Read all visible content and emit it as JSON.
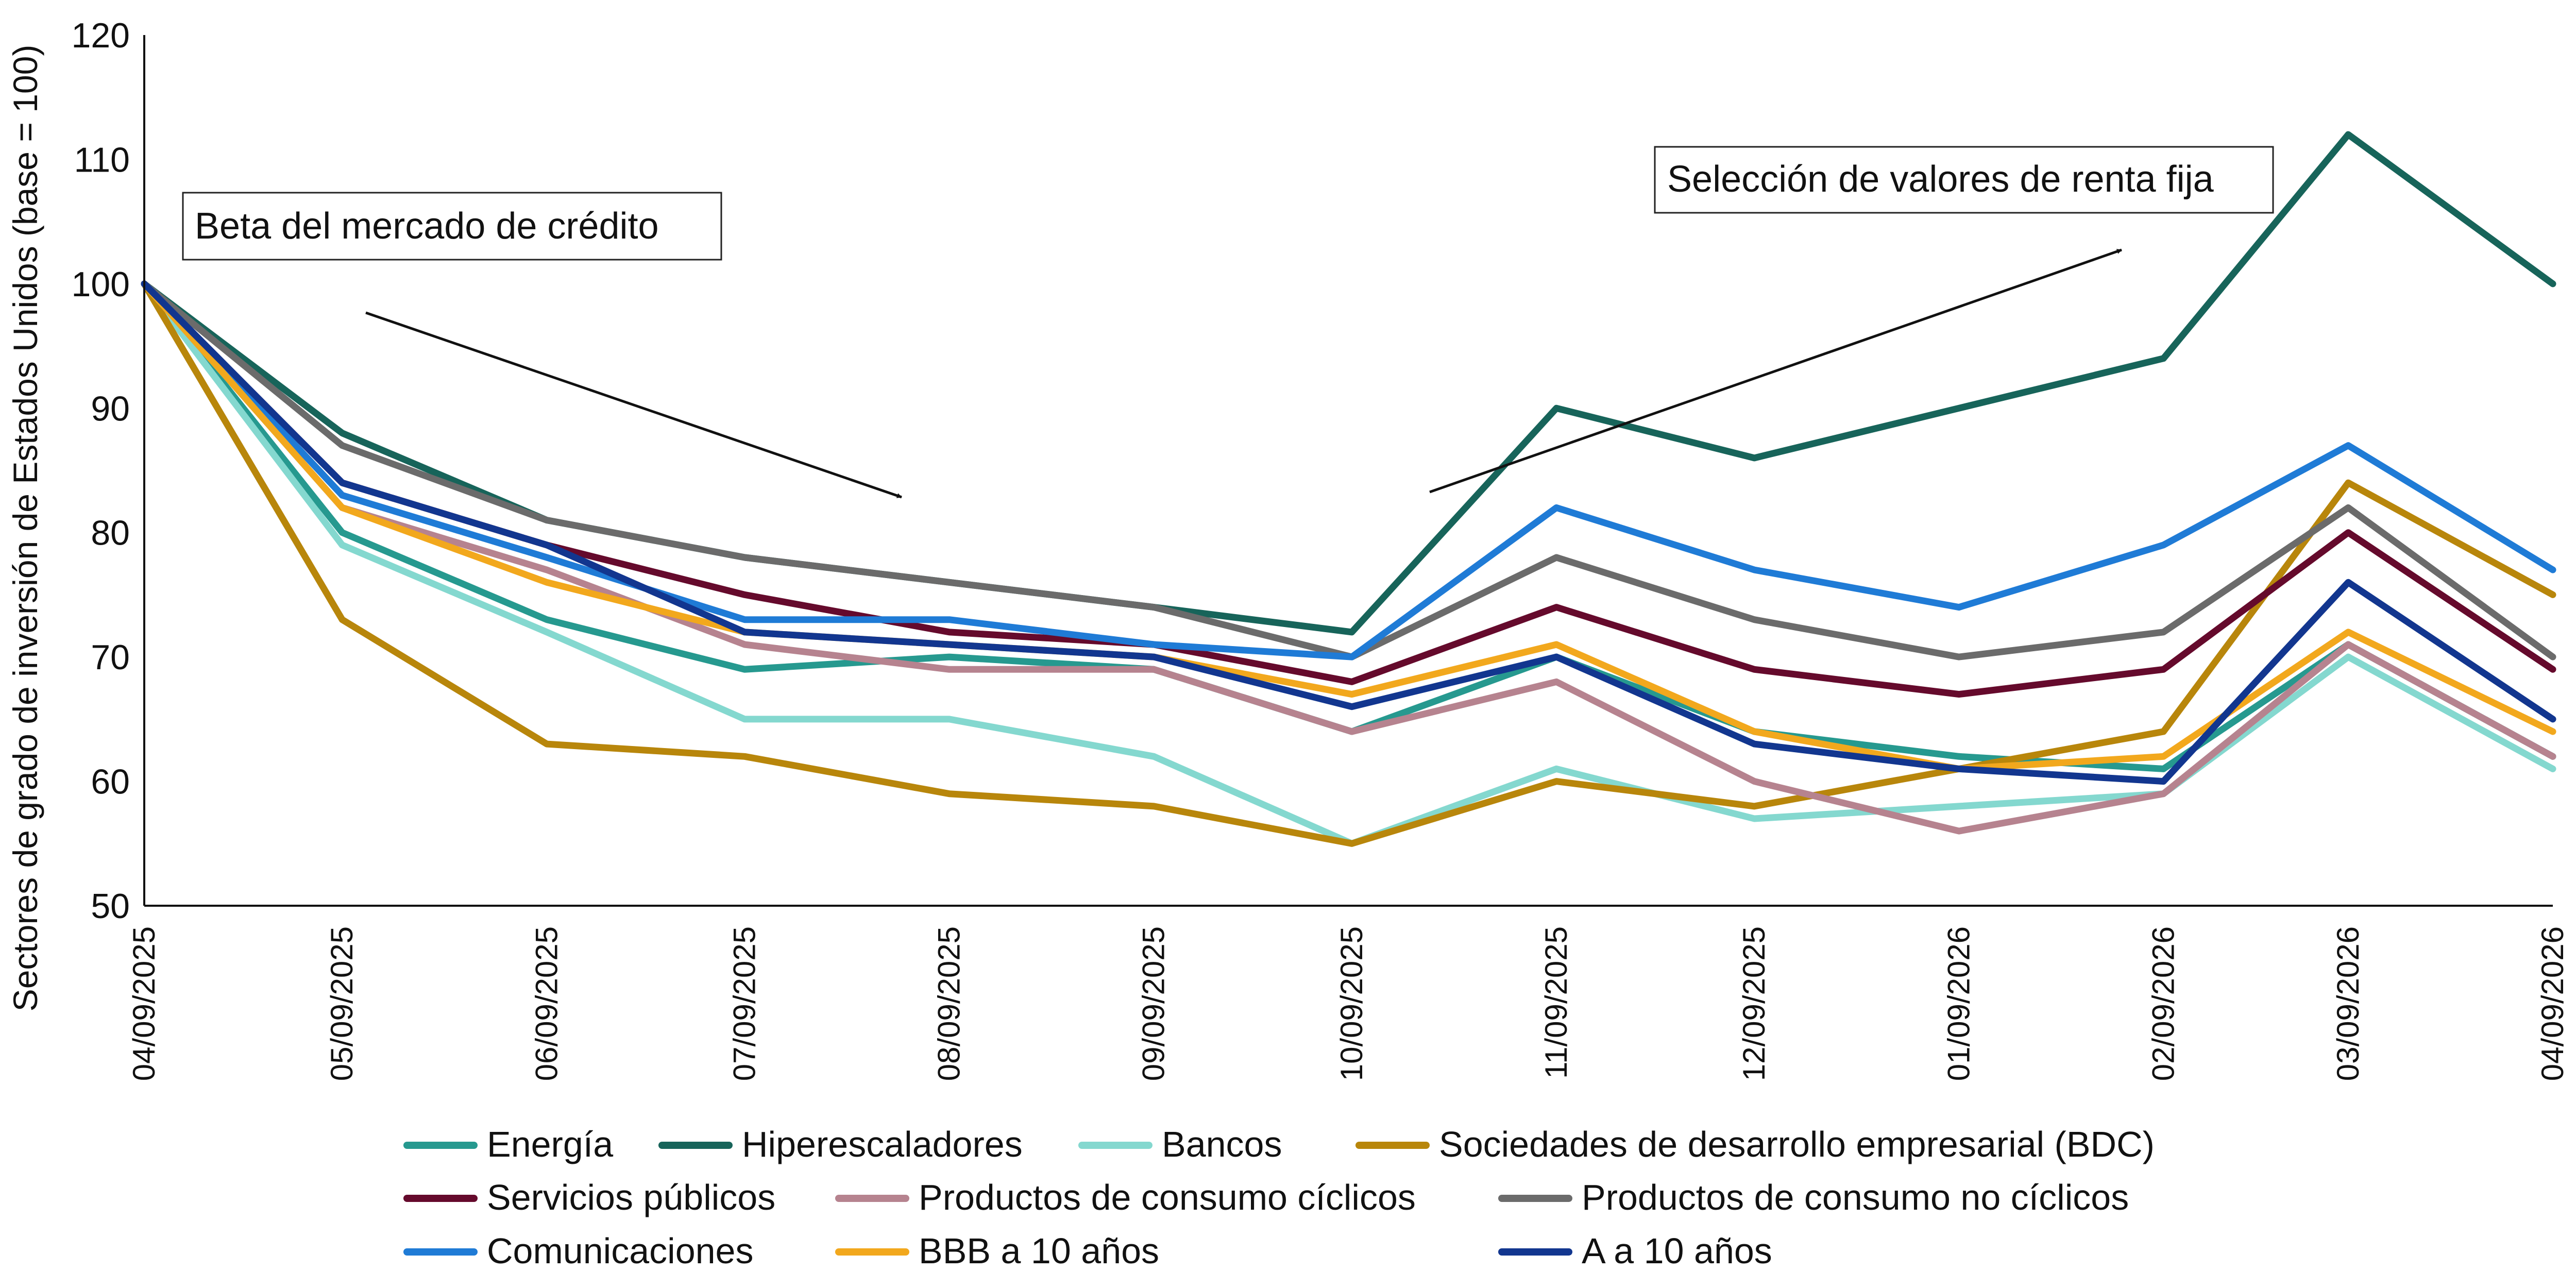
{
  "chart_data": {
    "type": "line",
    "ylabel": "Sectores de grado de inversión de Estados Unidos (base = 100)",
    "xlabel": "",
    "ylim": [
      50,
      120
    ],
    "yticks": [
      50,
      60,
      70,
      80,
      90,
      100,
      110,
      120
    ],
    "xlim": [
      "04/09/2025",
      "04/09/2026"
    ],
    "x_ticks": [
      "04/09/2025",
      "05/09/2025",
      "06/09/2025",
      "07/09/2025",
      "08/09/2025",
      "09/09/2025",
      "10/09/2025",
      "11/09/2025",
      "12/09/2025",
      "01/09/2026",
      "02/09/2026",
      "03/09/2026",
      "04/09/2026"
    ],
    "grid": false,
    "legend_position": "bottom",
    "annotations": [
      {
        "text": "Beta del mercado de crédito"
      },
      {
        "text": "Selección de valores de renta fija"
      }
    ],
    "series": [
      {
        "name": "Energía",
        "color": "#26998f",
        "x": [
          "04/09/2025",
          "05/09/2025",
          "06/09/2025",
          "07/09/2025",
          "08/09/2025",
          "09/09/2025",
          "10/09/2025",
          "11/09/2025",
          "12/09/2025",
          "01/09/2026",
          "02/09/2026",
          "03/09/2026",
          "04/09/2026"
        ],
        "values": [
          100,
          80,
          73,
          69,
          70,
          69,
          64,
          70,
          64,
          62,
          61,
          71,
          62
        ]
      },
      {
        "name": "Hiperescaladores",
        "color": "#17645a",
        "x": [
          "04/09/2025",
          "05/09/2025",
          "06/09/2025",
          "07/09/2025",
          "08/09/2025",
          "09/09/2025",
          "10/09/2025",
          "11/09/2025",
          "12/09/2025",
          "01/09/2026",
          "02/09/2026",
          "03/09/2026",
          "04/09/2026"
        ],
        "values": [
          100,
          88,
          81,
          78,
          76,
          74,
          72,
          90,
          86,
          90,
          94,
          112,
          100
        ]
      },
      {
        "name": "Bancos",
        "color": "#84d8cf",
        "x": [
          "04/09/2025",
          "05/09/2025",
          "06/09/2025",
          "07/09/2025",
          "08/09/2025",
          "09/09/2025",
          "10/09/2025",
          "11/09/2025",
          "12/09/2025",
          "01/09/2026",
          "02/09/2026",
          "03/09/2026",
          "04/09/2026"
        ],
        "values": [
          100,
          79,
          72,
          65,
          65,
          62,
          55,
          61,
          57,
          58,
          59,
          70,
          61
        ]
      },
      {
        "name": "Sociedades de desarrollo empresarial (BDC)",
        "color": "#b8860b",
        "x": [
          "04/09/2025",
          "05/09/2025",
          "06/09/2025",
          "07/09/2025",
          "08/09/2025",
          "09/09/2025",
          "10/09/2025",
          "11/09/2025",
          "12/09/2025",
          "01/09/2026",
          "02/09/2026",
          "03/09/2026",
          "04/09/2026"
        ],
        "values": [
          100,
          73,
          63,
          62,
          59,
          58,
          55,
          60,
          58,
          61,
          64,
          84,
          75
        ]
      },
      {
        "name": "Servicios públicos",
        "color": "#650a2c",
        "x": [
          "04/09/2025",
          "05/09/2025",
          "06/09/2025",
          "07/09/2025",
          "08/09/2025",
          "09/09/2025",
          "10/09/2025",
          "11/09/2025",
          "12/09/2025",
          "01/09/2026",
          "02/09/2026",
          "03/09/2026",
          "04/09/2026"
        ],
        "values": [
          100,
          84,
          79,
          75,
          72,
          71,
          68,
          74,
          69,
          67,
          69,
          80,
          69
        ]
      },
      {
        "name": "Productos de consumo cíclicos",
        "color": "#b6838f",
        "x": [
          "04/09/2025",
          "05/09/2025",
          "06/09/2025",
          "07/09/2025",
          "08/09/2025",
          "09/09/2025",
          "10/09/2025",
          "11/09/2025",
          "12/09/2025",
          "01/09/2026",
          "02/09/2026",
          "03/09/2026",
          "04/09/2026"
        ],
        "values": [
          100,
          82,
          77,
          71,
          69,
          69,
          64,
          68,
          60,
          56,
          59,
          71,
          62
        ]
      },
      {
        "name": "Productos de consumo no cíclicos",
        "color": "#6b6b6b",
        "x": [
          "04/09/2025",
          "05/09/2025",
          "06/09/2025",
          "07/09/2025",
          "08/09/2025",
          "09/09/2025",
          "10/09/2025",
          "11/09/2025",
          "12/09/2025",
          "01/09/2026",
          "02/09/2026",
          "03/09/2026",
          "04/09/2026"
        ],
        "values": [
          100,
          87,
          81,
          78,
          76,
          74,
          70,
          78,
          73,
          70,
          72,
          82,
          70
        ]
      },
      {
        "name": "Comunicaciones",
        "color": "#1f7bd6",
        "x": [
          "04/09/2025",
          "05/09/2025",
          "06/09/2025",
          "07/09/2025",
          "08/09/2025",
          "09/09/2025",
          "10/09/2025",
          "11/09/2025",
          "12/09/2025",
          "01/09/2026",
          "02/09/2026",
          "03/09/2026",
          "04/09/2026"
        ],
        "values": [
          100,
          83,
          78,
          73,
          73,
          71,
          70,
          82,
          77,
          74,
          79,
          87,
          77
        ]
      },
      {
        "name": "BBB a 10 años",
        "color": "#f2a81d",
        "x": [
          "04/09/2025",
          "05/09/2025",
          "06/09/2025",
          "07/09/2025",
          "08/09/2025",
          "09/09/2025",
          "10/09/2025",
          "11/09/2025",
          "12/09/2025",
          "01/09/2026",
          "02/09/2026",
          "03/09/2026",
          "04/09/2026"
        ],
        "values": [
          100,
          82,
          76,
          72,
          71,
          70,
          67,
          71,
          64,
          61,
          62,
          72,
          64
        ]
      },
      {
        "name": "A a 10 años",
        "color": "#12368f",
        "x": [
          "04/09/2025",
          "05/09/2025",
          "06/09/2025",
          "07/09/2025",
          "08/09/2025",
          "09/09/2025",
          "10/09/2025",
          "11/09/2025",
          "12/09/2025",
          "01/09/2026",
          "02/09/2026",
          "03/09/2026",
          "04/09/2026"
        ],
        "values": [
          100,
          84,
          79,
          72,
          71,
          70,
          66,
          70,
          63,
          61,
          60,
          76,
          65
        ]
      }
    ]
  }
}
